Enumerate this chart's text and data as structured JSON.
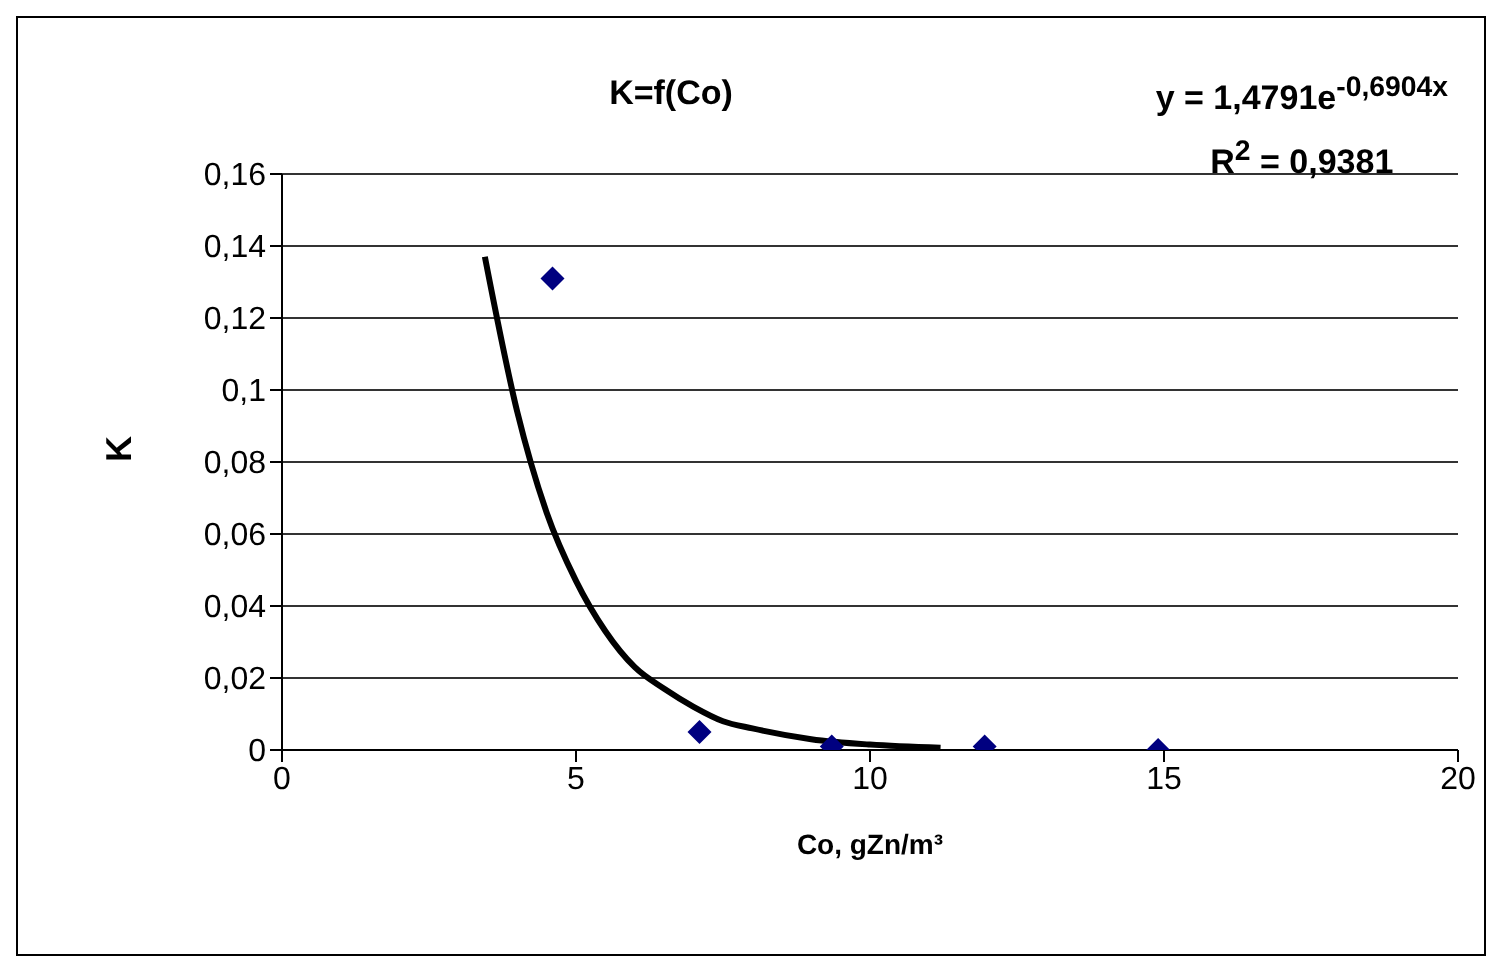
{
  "chart_data": {
    "type": "scatter",
    "title": "K=f(Co)",
    "xlabel": "Co, gZn/m³",
    "ylabel": "K",
    "annotations": [
      "y = 1,4791e$^{-0,6904x}$",
      "R$^{2}$ = 0,9381"
    ],
    "xlim": [
      0,
      20
    ],
    "xticks": [
      0,
      5,
      10,
      15,
      20
    ],
    "ylim": [
      0,
      0.16
    ],
    "yticks": [
      0,
      {
        "value": 0.02,
        "label": "0,02"
      },
      {
        "value": 0.04,
        "label": "0,04"
      },
      {
        "value": 0.06,
        "label": "0,06"
      },
      {
        "value": 0.08,
        "label": "0,08"
      },
      {
        "value": 0.1,
        "label": "0,1"
      },
      {
        "value": 0.12,
        "label": "0,12"
      },
      {
        "value": 0.14,
        "label": "0,14"
      },
      {
        "value": 0.16,
        "label": "0,16"
      }
    ],
    "grid": "y",
    "legend": false,
    "series": [
      {
        "type": "scatter",
        "color": "#000080",
        "marker": "diamond",
        "x": [
          4.6,
          7.1,
          9.35,
          11.95,
          14.9
        ],
        "values": [
          0.131,
          0.005,
          0.001,
          0.001,
          0.0
        ]
      },
      {
        "type": "line",
        "color": "#000000",
        "marker": "none",
        "line_style": "solid",
        "x": [
          3.45,
          4,
          4.5,
          5,
          5.5,
          6,
          6.5,
          7,
          7.5,
          8,
          9,
          10,
          11.2
        ],
        "values": [
          0.137,
          0.094,
          0.066,
          0.047,
          0.033,
          0.023,
          0.017,
          0.012,
          0.008,
          0.006,
          0.003,
          0.0015,
          0.0006
        ]
      }
    ]
  }
}
